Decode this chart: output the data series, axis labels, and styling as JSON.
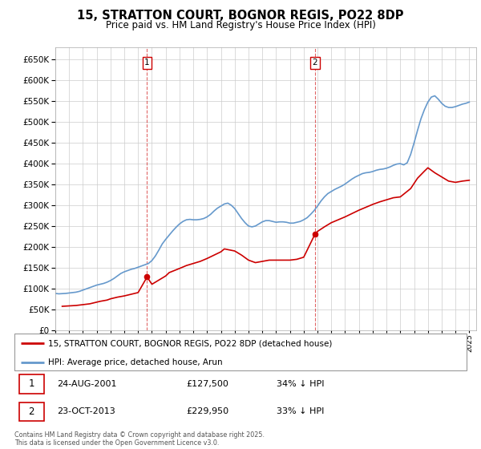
{
  "title": "15, STRATTON COURT, BOGNOR REGIS, PO22 8DP",
  "subtitle": "Price paid vs. HM Land Registry's House Price Index (HPI)",
  "ylim": [
    0,
    680000
  ],
  "yticks": [
    0,
    50000,
    100000,
    150000,
    200000,
    250000,
    300000,
    350000,
    400000,
    450000,
    500000,
    550000,
    600000,
    650000
  ],
  "xlim_start": 1995.0,
  "xlim_end": 2025.5,
  "sale1_date": 2001.65,
  "sale1_price": 127500,
  "sale1_label": "1",
  "sale1_text": "24-AUG-2001",
  "sale1_pct": "34% ↓ HPI",
  "sale2_date": 2013.81,
  "sale2_price": 229950,
  "sale2_label": "2",
  "sale2_text": "23-OCT-2013",
  "sale2_pct": "33% ↓ HPI",
  "line_color_price": "#cc0000",
  "line_color_hpi": "#6699cc",
  "legend_label_price": "15, STRATTON COURT, BOGNOR REGIS, PO22 8DP (detached house)",
  "legend_label_hpi": "HPI: Average price, detached house, Arun",
  "footer": "Contains HM Land Registry data © Crown copyright and database right 2025.\nThis data is licensed under the Open Government Licence v3.0.",
  "background_color": "#ffffff",
  "grid_color": "#cccccc",
  "hpi_data_x": [
    1995.0,
    1995.25,
    1995.5,
    1995.75,
    1996.0,
    1996.25,
    1996.5,
    1996.75,
    1997.0,
    1997.25,
    1997.5,
    1997.75,
    1998.0,
    1998.25,
    1998.5,
    1998.75,
    1999.0,
    1999.25,
    1999.5,
    1999.75,
    2000.0,
    2000.25,
    2000.5,
    2000.75,
    2001.0,
    2001.25,
    2001.5,
    2001.75,
    2002.0,
    2002.25,
    2002.5,
    2002.75,
    2003.0,
    2003.25,
    2003.5,
    2003.75,
    2004.0,
    2004.25,
    2004.5,
    2004.75,
    2005.0,
    2005.25,
    2005.5,
    2005.75,
    2006.0,
    2006.25,
    2006.5,
    2006.75,
    2007.0,
    2007.25,
    2007.5,
    2007.75,
    2008.0,
    2008.25,
    2008.5,
    2008.75,
    2009.0,
    2009.25,
    2009.5,
    2009.75,
    2010.0,
    2010.25,
    2010.5,
    2010.75,
    2011.0,
    2011.25,
    2011.5,
    2011.75,
    2012.0,
    2012.25,
    2012.5,
    2012.75,
    2013.0,
    2013.25,
    2013.5,
    2013.75,
    2014.0,
    2014.25,
    2014.5,
    2014.75,
    2015.0,
    2015.25,
    2015.5,
    2015.75,
    2016.0,
    2016.25,
    2016.5,
    2016.75,
    2017.0,
    2017.25,
    2017.5,
    2017.75,
    2018.0,
    2018.25,
    2018.5,
    2018.75,
    2019.0,
    2019.25,
    2019.5,
    2019.75,
    2020.0,
    2020.25,
    2020.5,
    2020.75,
    2021.0,
    2021.25,
    2021.5,
    2021.75,
    2022.0,
    2022.25,
    2022.5,
    2022.75,
    2023.0,
    2023.25,
    2023.5,
    2023.75,
    2024.0,
    2024.25,
    2024.5,
    2024.75,
    2025.0
  ],
  "hpi_data_y": [
    88000,
    87000,
    87500,
    88000,
    89000,
    90000,
    91000,
    93000,
    96000,
    99000,
    102000,
    105000,
    108000,
    110000,
    112000,
    115000,
    119000,
    124000,
    130000,
    136000,
    140000,
    143000,
    146000,
    148000,
    151000,
    154000,
    157000,
    160000,
    167000,
    178000,
    192000,
    207000,
    218000,
    228000,
    238000,
    247000,
    255000,
    261000,
    265000,
    266000,
    265000,
    265000,
    266000,
    268000,
    272000,
    278000,
    286000,
    293000,
    298000,
    303000,
    305000,
    300000,
    292000,
    280000,
    268000,
    258000,
    250000,
    248000,
    250000,
    255000,
    260000,
    263000,
    263000,
    261000,
    259000,
    260000,
    260000,
    259000,
    257000,
    257000,
    259000,
    261000,
    265000,
    270000,
    278000,
    287000,
    298000,
    310000,
    320000,
    328000,
    333000,
    338000,
    342000,
    346000,
    351000,
    357000,
    363000,
    368000,
    372000,
    376000,
    378000,
    379000,
    381000,
    384000,
    386000,
    387000,
    389000,
    392000,
    396000,
    399000,
    400000,
    397000,
    402000,
    422000,
    450000,
    480000,
    508000,
    530000,
    548000,
    560000,
    563000,
    555000,
    545000,
    538000,
    535000,
    535000,
    537000,
    540000,
    543000,
    545000,
    548000
  ],
  "price_data_x": [
    1995.5,
    1996.0,
    1996.5,
    1997.0,
    1997.5,
    1997.75,
    1998.0,
    1998.25,
    1998.75,
    1999.0,
    1999.5,
    2000.0,
    2000.5,
    2001.0,
    2001.65,
    2002.0,
    2002.5,
    2003.0,
    2003.25,
    2004.0,
    2004.5,
    2005.0,
    2005.5,
    2006.0,
    2006.5,
    2007.0,
    2007.25,
    2008.0,
    2008.5,
    2009.0,
    2009.5,
    2010.0,
    2010.5,
    2011.0,
    2011.5,
    2012.0,
    2012.5,
    2013.0,
    2013.81,
    2014.0,
    2014.5,
    2015.0,
    2015.5,
    2016.0,
    2016.5,
    2017.0,
    2017.5,
    2018.0,
    2018.5,
    2019.0,
    2019.5,
    2020.0,
    2020.75,
    2021.25,
    2021.75,
    2022.0,
    2022.5,
    2023.0,
    2023.5,
    2024.0,
    2024.5,
    2025.0
  ],
  "price_data_y": [
    57000,
    58000,
    59000,
    61000,
    63000,
    65000,
    67000,
    69000,
    72000,
    75000,
    79000,
    82000,
    86000,
    90000,
    127500,
    110000,
    120000,
    130000,
    138000,
    148000,
    155000,
    160000,
    165000,
    172000,
    180000,
    188000,
    195000,
    190000,
    180000,
    168000,
    162000,
    165000,
    168000,
    168000,
    168000,
    168000,
    170000,
    175000,
    229950,
    237000,
    248000,
    258000,
    265000,
    272000,
    280000,
    288000,
    295000,
    302000,
    308000,
    313000,
    318000,
    320000,
    340000,
    365000,
    382000,
    390000,
    378000,
    368000,
    358000,
    355000,
    358000,
    360000
  ]
}
